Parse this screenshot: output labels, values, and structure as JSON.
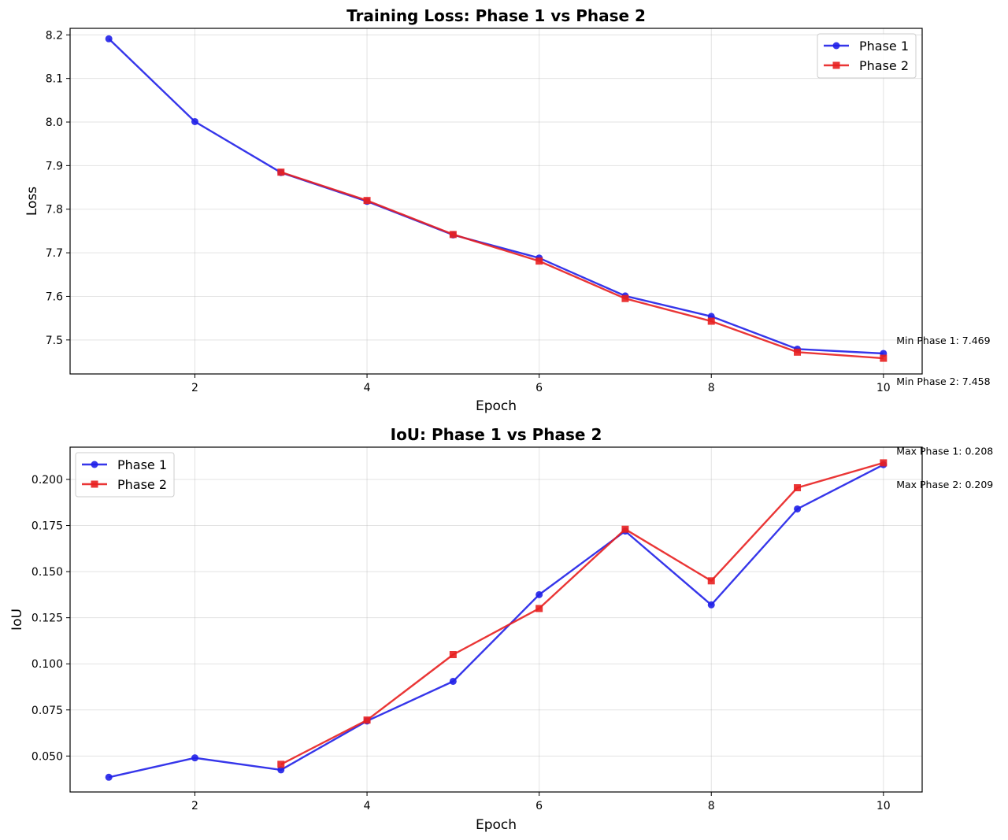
{
  "chart_data": [
    {
      "type": "line",
      "title": "Training Loss: Phase 1 vs Phase 2",
      "xlabel": "Epoch",
      "ylabel": "Loss",
      "xlim": [
        0.55,
        10.45
      ],
      "ylim": [
        7.422,
        8.215
      ],
      "xticks": [
        2,
        4,
        6,
        8,
        10
      ],
      "yticks": [
        7.5,
        7.6,
        7.7,
        7.8,
        7.9,
        8.0,
        8.1,
        8.2
      ],
      "ytick_decimals": 1,
      "grid": true,
      "legend": "top-right",
      "series": [
        {
          "name": "Phase 1",
          "color": "#2020e8",
          "marker": "circle",
          "x": [
            1,
            2,
            3,
            4,
            5,
            6,
            7,
            8,
            9,
            10
          ],
          "y": [
            8.191,
            8.001,
            7.884,
            7.818,
            7.741,
            7.688,
            7.601,
            7.554,
            7.479,
            7.469
          ]
        },
        {
          "name": "Phase 2",
          "color": "#e82020",
          "marker": "square",
          "x": [
            3,
            4,
            5,
            6,
            7,
            8,
            9,
            10
          ],
          "y": [
            7.885,
            7.82,
            7.742,
            7.681,
            7.595,
            7.543,
            7.472,
            7.458
          ]
        }
      ],
      "annotations": [
        {
          "text": "Min Phase 1: 7.469",
          "x": 10.15,
          "y": 7.5
        },
        {
          "text": "Min Phase 2: 7.458",
          "x": 10.15,
          "y": 7.406
        }
      ]
    },
    {
      "type": "line",
      "title": "IoU: Phase 1 vs Phase 2",
      "xlabel": "Epoch",
      "ylabel": "IoU",
      "xlim": [
        0.55,
        10.45
      ],
      "ylim": [
        0.0305,
        0.2175
      ],
      "xticks": [
        2,
        4,
        6,
        8,
        10
      ],
      "yticks": [
        0.05,
        0.075,
        0.1,
        0.125,
        0.15,
        0.175,
        0.2
      ],
      "ytick_decimals": 3,
      "grid": true,
      "legend": "top-left",
      "series": [
        {
          "name": "Phase 1",
          "color": "#2020e8",
          "marker": "circle",
          "x": [
            1,
            2,
            3,
            4,
            5,
            6,
            7,
            8,
            9,
            10
          ],
          "y": [
            0.0385,
            0.049,
            0.0425,
            0.069,
            0.0905,
            0.1375,
            0.172,
            0.132,
            0.184,
            0.208
          ]
        },
        {
          "name": "Phase 2",
          "color": "#e82020",
          "marker": "square",
          "x": [
            3,
            4,
            5,
            6,
            7,
            8,
            9,
            10
          ],
          "y": [
            0.0455,
            0.0695,
            0.105,
            0.13,
            0.173,
            0.145,
            0.1955,
            0.209
          ]
        }
      ],
      "annotations": [
        {
          "text": "Max Phase 1: 0.208",
          "x": 10.15,
          "y": 0.2155
        },
        {
          "text": "Max Phase 2: 0.209",
          "x": 10.15,
          "y": 0.1975
        }
      ]
    }
  ]
}
